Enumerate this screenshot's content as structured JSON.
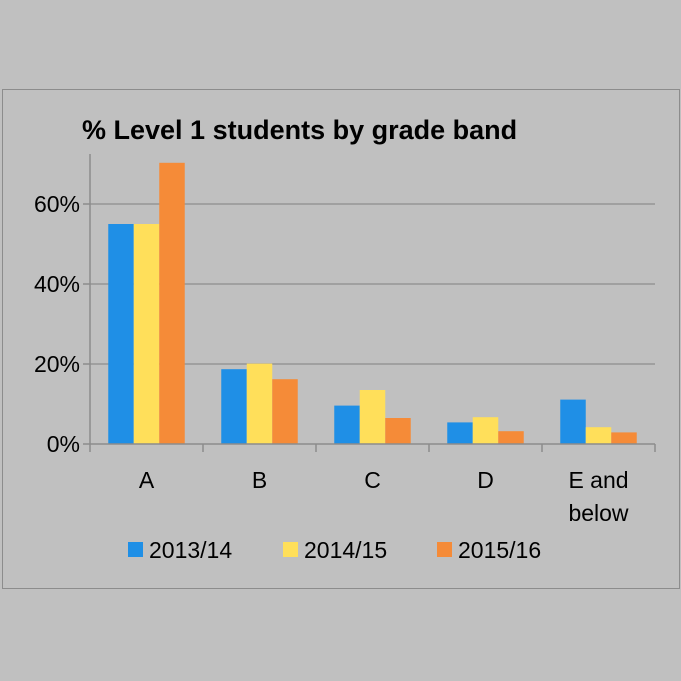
{
  "chart_data": {
    "type": "bar",
    "title": "% Level 1 students by grade band",
    "xlabel": "",
    "ylabel": "",
    "categories": [
      [
        "A"
      ],
      [
        "B"
      ],
      [
        "C"
      ],
      [
        "D"
      ],
      [
        "E and",
        "below"
      ]
    ],
    "series": [
      {
        "name": "2013/14",
        "color": "#1f8fe6",
        "values": [
          55,
          18.7,
          9.6,
          5.4,
          11.1
        ]
      },
      {
        "name": "2014/15",
        "color": "#ffdf5a",
        "values": [
          55,
          20.1,
          13.5,
          6.7,
          4.2
        ]
      },
      {
        "name": "2015/16",
        "color": "#f58b38",
        "values": [
          70.3,
          16.2,
          6.5,
          3.2,
          2.9
        ]
      }
    ],
    "ylim": [
      0,
      70
    ],
    "yticks": [
      0,
      20,
      40,
      60
    ],
    "ytick_labels": [
      "0%",
      "20%",
      "40%",
      "60%"
    ],
    "grid": true,
    "legend_position": "bottom"
  }
}
